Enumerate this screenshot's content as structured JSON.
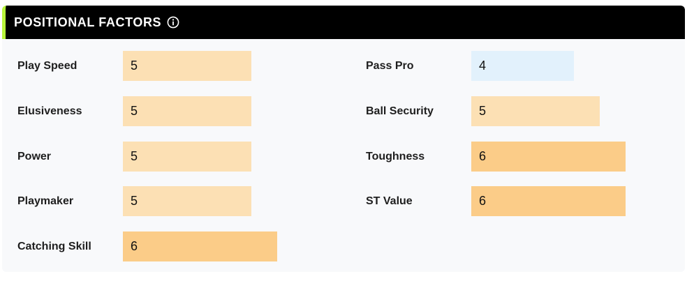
{
  "header": {
    "title": "POSITIONAL FACTORS",
    "info_icon": "info-circle-icon",
    "accent_color": "#b7f43a"
  },
  "colors": {
    "value_5": "#fce0b4",
    "value_6": "#fbcc88",
    "value_4": "#e2f1fc"
  },
  "max_scale": 10,
  "left_factors": [
    {
      "label": "Play Speed",
      "value": "5"
    },
    {
      "label": "Elusiveness",
      "value": "5"
    },
    {
      "label": "Power",
      "value": "5"
    },
    {
      "label": "Playmaker",
      "value": "5"
    },
    {
      "label": "Catching Skill",
      "value": "6"
    }
  ],
  "right_factors": [
    {
      "label": "Pass Pro",
      "value": "4"
    },
    {
      "label": "Ball Security",
      "value": "5"
    },
    {
      "label": "Toughness",
      "value": "6"
    },
    {
      "label": "ST Value",
      "value": "6"
    }
  ]
}
